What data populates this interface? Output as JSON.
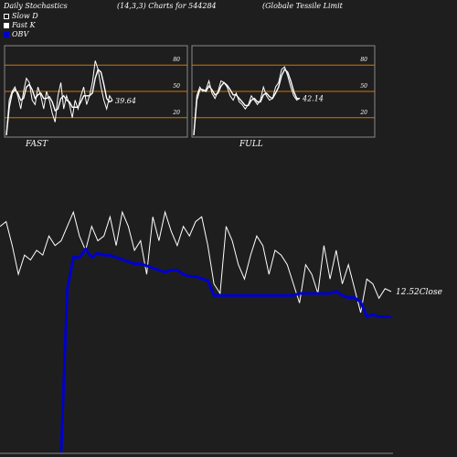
{
  "header": {
    "title": "Daily Stochastics",
    "params": "(14,3,3) Charts for 544284",
    "company": "(Globale  Tessile  Limit"
  },
  "legend": [
    {
      "label": "Slow  D",
      "color": "#ffffff"
    },
    {
      "label": "Fast K",
      "color": "#ffffff"
    },
    {
      "label": "OBV",
      "color": "#0000cc"
    }
  ],
  "colors": {
    "background": "#1e1e1e",
    "panel_border": "#888888",
    "level_line": "#cc7700",
    "line": "#ffffff",
    "obv": "#0000cc"
  },
  "chart_data": [
    {
      "type": "line",
      "title": "FAST",
      "ylim": [
        0,
        100
      ],
      "levels": [
        20,
        50,
        80
      ],
      "level_labels": [
        "20",
        "50",
        "80"
      ],
      "last_value_label": "39.64",
      "series": [
        {
          "values": [
            0,
            40,
            50,
            55,
            45,
            30,
            50,
            65,
            60,
            40,
            35,
            55,
            45,
            30,
            50,
            40,
            25,
            15,
            45,
            60,
            30,
            45,
            35,
            20,
            40,
            30,
            45,
            55,
            35,
            45,
            60,
            85,
            75,
            55,
            40,
            30,
            45,
            40
          ]
        },
        {
          "values": [
            0,
            32,
            48,
            52,
            48,
            40,
            42,
            55,
            58,
            52,
            42,
            46,
            48,
            42,
            42,
            44,
            38,
            28,
            30,
            42,
            45,
            40,
            38,
            32,
            32,
            32,
            38,
            45,
            45,
            45,
            48,
            65,
            75,
            72,
            58,
            42,
            38,
            39.64
          ]
        }
      ]
    },
    {
      "type": "line",
      "title": "FULL",
      "ylim": [
        0,
        100
      ],
      "levels": [
        20,
        50,
        80
      ],
      "level_labels": [
        "20",
        "50",
        "80"
      ],
      "last_value_label": "42.14",
      "series": [
        {
          "values": [
            0,
            45,
            55,
            50,
            52,
            62,
            48,
            42,
            50,
            62,
            60,
            55,
            45,
            40,
            48,
            38,
            35,
            30,
            35,
            45,
            40,
            35,
            40,
            55,
            45,
            40,
            42,
            55,
            60,
            75,
            78,
            68,
            55,
            45,
            40,
            42.14
          ]
        },
        {
          "values": [
            0,
            40,
            52,
            52,
            50,
            56,
            52,
            46,
            48,
            56,
            60,
            57,
            52,
            46,
            46,
            42,
            38,
            34,
            34,
            40,
            42,
            38,
            38,
            46,
            48,
            44,
            42,
            48,
            55,
            68,
            75,
            72,
            62,
            50,
            42,
            42
          ]
        }
      ]
    },
    {
      "type": "line",
      "title": "",
      "last_value_label": "12.52",
      "last_value_suffix": "Close",
      "series": [
        {
          "name": "Close",
          "values": [
            13.2,
            13.25,
            13.0,
            12.7,
            12.9,
            12.85,
            12.95,
            12.9,
            13.1,
            13.0,
            13.05,
            13.2,
            13.35,
            13.1,
            12.95,
            13.2,
            13.05,
            13.1,
            13.3,
            13.0,
            13.35,
            13.2,
            12.95,
            13.05,
            12.7,
            13.3,
            13.05,
            13.35,
            13.15,
            13.0,
            13.2,
            13.1,
            13.25,
            13.3,
            13.0,
            12.6,
            12.5,
            13.2,
            13.05,
            12.8,
            12.65,
            12.9,
            13.1,
            13.0,
            12.7,
            12.95,
            12.9,
            12.8,
            12.6,
            12.4,
            12.8,
            12.7,
            12.5,
            13.0,
            12.65,
            12.95,
            12.6,
            12.8,
            12.55,
            12.3,
            12.65,
            12.6,
            12.45,
            12.55,
            12.52
          ]
        },
        {
          "name": "OBV",
          "values": [
            null,
            null,
            null,
            null,
            null,
            null,
            null,
            null,
            null,
            null,
            0.0,
            0.77,
            0.92,
            0.92,
            0.96,
            0.92,
            0.94,
            0.93,
            0.93,
            0.92,
            0.91,
            0.9,
            0.89,
            0.89,
            0.88,
            0.87,
            0.86,
            0.85,
            0.86,
            0.86,
            0.84,
            0.83,
            0.83,
            0.82,
            0.81,
            0.74,
            0.74,
            0.74,
            0.74,
            0.74,
            0.74,
            0.74,
            0.74,
            0.74,
            0.74,
            0.74,
            0.74,
            0.74,
            0.74,
            0.75,
            0.75,
            0.75,
            0.75,
            0.75,
            0.75,
            0.76,
            0.74,
            0.73,
            0.73,
            0.71,
            0.64,
            0.65,
            0.64,
            0.64,
            0.64
          ]
        }
      ]
    }
  ]
}
